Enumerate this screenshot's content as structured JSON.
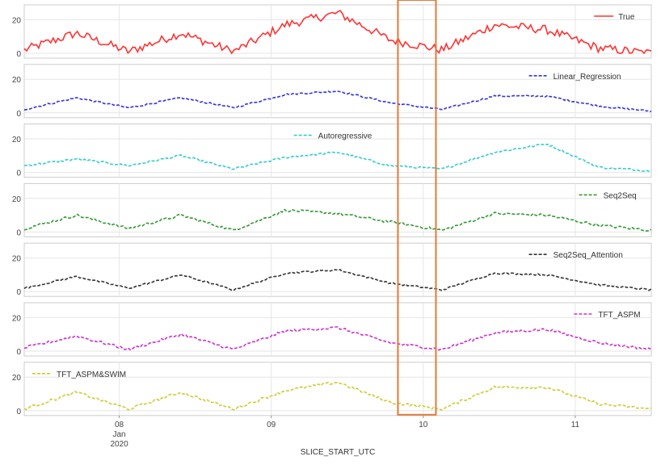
{
  "chart_data": {
    "type": "line",
    "xlabel": "SLICE_START_UTC",
    "x_range": [
      "2020-01-07 09:00",
      "2020-01-11 12:00"
    ],
    "x_ticks": [
      {
        "date": "2020-01-08 00:00",
        "label": "08",
        "sub1": "Jan",
        "sub2": "2020"
      },
      {
        "date": "2020-01-09 00:00",
        "label": "09",
        "sub1": "",
        "sub2": ""
      },
      {
        "date": "2020-01-10 00:00",
        "label": "10",
        "sub1": "",
        "sub2": ""
      },
      {
        "date": "2020-01-11 00:00",
        "label": "11",
        "sub1": "",
        "sub2": ""
      }
    ],
    "highlight": {
      "from": "2020-01-09 20:00",
      "to": "2020-01-10 02:00",
      "color": "#e07b39"
    },
    "grid": true,
    "ylim": [
      0,
      25
    ],
    "y_ticks": [
      "0",
      "20"
    ],
    "panels": [
      {
        "name": "True",
        "color": "#ff3333",
        "dash": "solid",
        "legend": "top-right",
        "noise": 2.6,
        "levels": [
          2,
          12,
          1,
          12,
          1,
          17,
          24,
          8,
          2,
          17,
          14,
          3,
          0
        ]
      },
      {
        "name": "Linear_Regression",
        "color": "#3333dd",
        "dash": "dashed",
        "legend": "top-right",
        "noise": 0.5,
        "levels": [
          2,
          9,
          3,
          9,
          3,
          11,
          13,
          6,
          2,
          10,
          10,
          4,
          1
        ]
      },
      {
        "name": "Autoregressive",
        "color": "#33cccc",
        "dash": "dashed",
        "legend": "top-center",
        "noise": 0.6,
        "levels": [
          4,
          8,
          4,
          10,
          2,
          9,
          12,
          4,
          2,
          12,
          17,
          3,
          1
        ]
      },
      {
        "name": "Seq2Seq",
        "color": "#339933",
        "dash": "dashed",
        "legend": "top-right",
        "noise": 0.8,
        "levels": [
          2,
          10,
          2,
          10,
          1,
          13,
          11,
          6,
          1,
          11,
          10,
          4,
          1
        ]
      },
      {
        "name": "Seq2Seq_Attention",
        "color": "#333333",
        "dash": "dashed",
        "legend": "top-right",
        "noise": 0.5,
        "levels": [
          2,
          9,
          2,
          10,
          1,
          11,
          13,
          5,
          1,
          11,
          10,
          4,
          1
        ]
      },
      {
        "name": "TFT_ASPM",
        "color": "#cc33cc",
        "dash": "dashed",
        "legend": "top-right",
        "noise": 0.8,
        "levels": [
          2,
          9,
          1,
          10,
          1,
          12,
          14,
          5,
          1,
          11,
          13,
          5,
          1
        ]
      },
      {
        "name": "TFT_ASPM&SWIM",
        "color": "#cccc33",
        "dash": "dashed",
        "legend": "top-left",
        "noise": 0.8,
        "levels": [
          1,
          11,
          1,
          11,
          1,
          12,
          17,
          5,
          1,
          14,
          14,
          4,
          1
        ]
      }
    ]
  }
}
